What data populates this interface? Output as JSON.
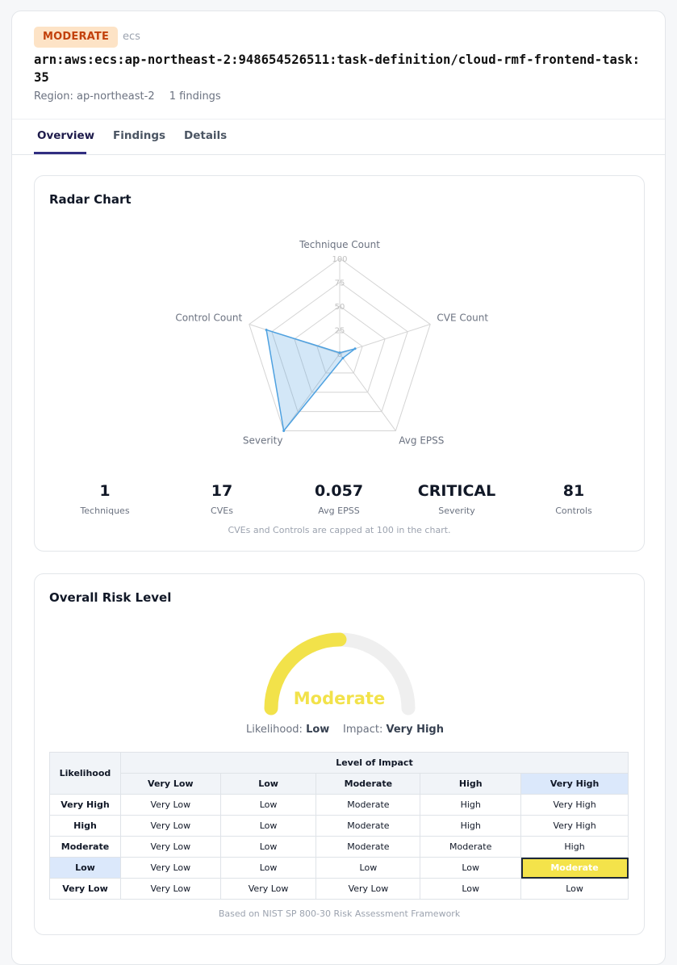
{
  "header": {
    "badge": "MODERATE",
    "service": "ecs",
    "arn": "arn:aws:ecs:ap-northeast-2:948654526511:task-definition/cloud-rmf-frontend-task:35",
    "region": "Region: ap-northeast-2",
    "findings": "1 findings"
  },
  "tabs": [
    {
      "label": "Overview",
      "active": true
    },
    {
      "label": "Findings",
      "active": false
    },
    {
      "label": "Details",
      "active": false
    }
  ],
  "radar": {
    "title": "Radar Chart",
    "note": "CVEs and Controls are capped at 100 in the chart."
  },
  "chart_data": {
    "type": "radar",
    "axes": [
      "Technique Count",
      "CVE Count",
      "Avg EPSS",
      "Severity",
      "Control Count"
    ],
    "ticks": [
      "0",
      "25",
      "50",
      "75",
      "100"
    ],
    "range": [
      0,
      100
    ],
    "values": [
      1,
      17,
      5.7,
      100,
      81
    ],
    "color": "#4ea1e0"
  },
  "metrics": [
    {
      "value": "1",
      "label": "Techniques"
    },
    {
      "value": "17",
      "label": "CVEs"
    },
    {
      "value": "0.057",
      "label": "Avg EPSS"
    },
    {
      "value": "CRITICAL",
      "label": "Severity"
    },
    {
      "value": "81",
      "label": "Controls"
    }
  ],
  "risk": {
    "title": "Overall Risk Level",
    "level": "Moderate",
    "gauge_fraction": 0.5,
    "gauge_color": "#f2e24a",
    "likelihood_label": "Likelihood:",
    "likelihood": "Low",
    "impact_label": "Impact:",
    "impact": "Very High",
    "table": {
      "corner": "Likelihood",
      "group_header": "Level of Impact",
      "columns": [
        "Very Low",
        "Low",
        "Moderate",
        "High",
        "Very High"
      ],
      "rows": [
        {
          "label": "Very High",
          "cells": [
            "Very Low",
            "Low",
            "Moderate",
            "High",
            "Very High"
          ]
        },
        {
          "label": "High",
          "cells": [
            "Very Low",
            "Low",
            "Moderate",
            "High",
            "Very High"
          ]
        },
        {
          "label": "Moderate",
          "cells": [
            "Very Low",
            "Low",
            "Moderate",
            "Moderate",
            "High"
          ]
        },
        {
          "label": "Low",
          "cells": [
            "Very Low",
            "Low",
            "Low",
            "Low",
            "Moderate"
          ]
        },
        {
          "label": "Very Low",
          "cells": [
            "Very Low",
            "Very Low",
            "Very Low",
            "Low",
            "Low"
          ]
        }
      ]
    },
    "footnote": "Based on NIST SP 800-30 Risk Assessment Framework"
  }
}
